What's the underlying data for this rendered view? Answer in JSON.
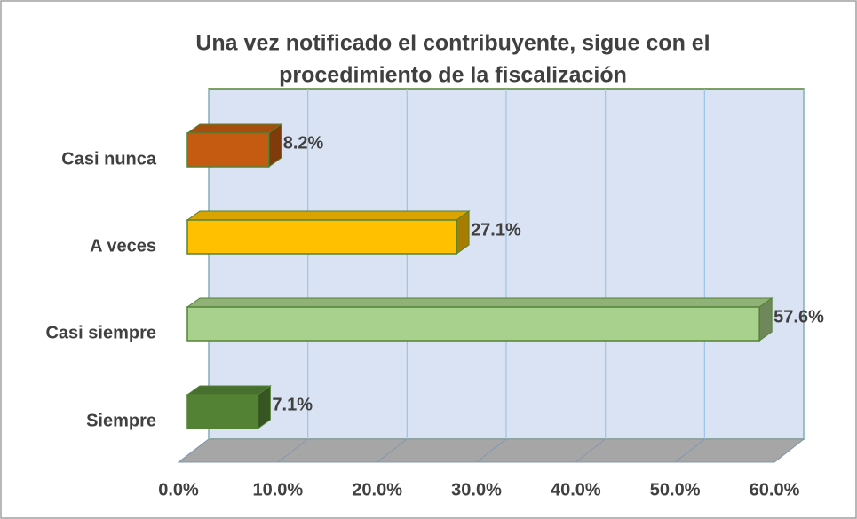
{
  "chart_data": {
    "type": "bar3d_horizontal",
    "title": [
      "Una vez notificado el contribuyente, sigue con el",
      "procedimiento de la fiscalización"
    ],
    "categories": [
      "Casi nunca",
      "A veces",
      "Casi siempre",
      "Siempre"
    ],
    "values": [
      8.2,
      27.1,
      57.6,
      7.1
    ],
    "value_labels": [
      "8.2%",
      "27.1%",
      "57.6%",
      "7.1%"
    ],
    "colors": [
      "#c55a11",
      "#ffc000",
      "#a9d18e",
      "#548235"
    ],
    "xlim": [
      0,
      60
    ],
    "xticks": [
      {
        "value": 0,
        "label": "0.0%"
      },
      {
        "value": 10,
        "label": "10.0%"
      },
      {
        "value": 20,
        "label": "20.0%"
      },
      {
        "value": 30,
        "label": "30.0%"
      },
      {
        "value": 40,
        "label": "40.0%"
      },
      {
        "value": 50,
        "label": "50.0%"
      },
      {
        "value": 60,
        "label": "60.0%"
      }
    ],
    "grid": true
  }
}
